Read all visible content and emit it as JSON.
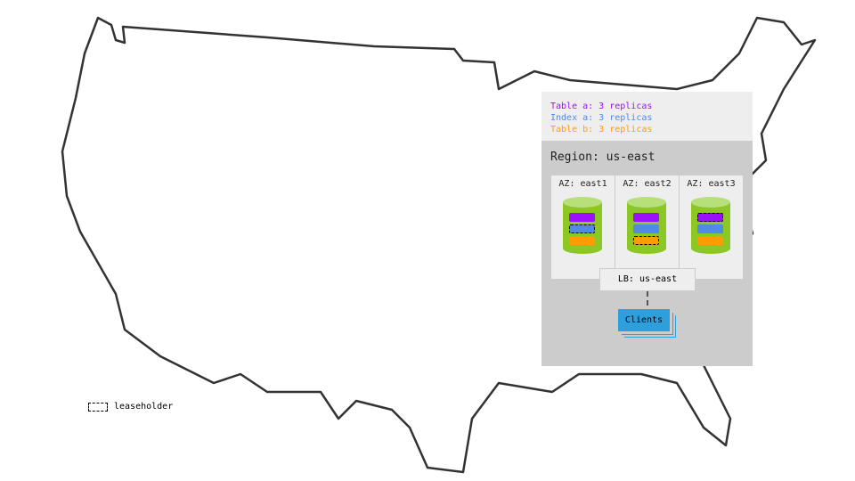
{
  "legend": [
    {
      "label": "Table a: 3 replicas",
      "color": "#9b10ff"
    },
    {
      "label": "Index a: 3 replicas",
      "color": "#4f8be6"
    },
    {
      "label": "Table b: 3 replicas",
      "color": "#ff9d00"
    }
  ],
  "region": {
    "title": "Region: us-east",
    "zones": [
      {
        "label": "AZ: east1",
        "leaseholder": "Index a"
      },
      {
        "label": "AZ: east2",
        "leaseholder": "Table b"
      },
      {
        "label": "AZ: east3",
        "leaseholder": "Table a"
      }
    ],
    "lb": "LB: us-east",
    "clients": "Clients"
  },
  "key": {
    "leaseholder": "leaseholder"
  }
}
